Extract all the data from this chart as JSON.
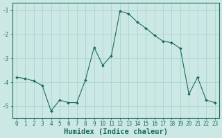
{
  "x": [
    0,
    1,
    2,
    3,
    4,
    5,
    6,
    7,
    8,
    9,
    10,
    11,
    12,
    13,
    14,
    15,
    16,
    17,
    18,
    19,
    20,
    21,
    22,
    23
  ],
  "y": [
    -3.8,
    -3.85,
    -3.95,
    -4.15,
    -5.2,
    -4.75,
    -4.85,
    -4.85,
    -3.9,
    -2.55,
    -3.3,
    -2.9,
    -1.05,
    -1.15,
    -1.5,
    -1.75,
    -2.05,
    -2.3,
    -2.35,
    -2.6,
    -4.5,
    -3.8,
    -4.75,
    -4.85
  ],
  "xlabel": "Humidex (Indice chaleur)",
  "ylim": [
    -5.5,
    -0.7
  ],
  "xlim": [
    -0.5,
    23.5
  ],
  "yticks": [
    -5,
    -4,
    -3,
    -2,
    -1
  ],
  "xticks": [
    0,
    1,
    2,
    3,
    4,
    5,
    6,
    7,
    8,
    9,
    10,
    11,
    12,
    13,
    14,
    15,
    16,
    17,
    18,
    19,
    20,
    21,
    22,
    23
  ],
  "line_color": "#1a6b5a",
  "marker": "D",
  "marker_size": 2.0,
  "bg_color": "#cce8e4",
  "grid_color": "#aad4cf",
  "tick_color": "#1a6b5a",
  "tick_fontsize": 5.5,
  "xlabel_fontsize": 7.5,
  "xlabel_color": "#1a6b5a"
}
